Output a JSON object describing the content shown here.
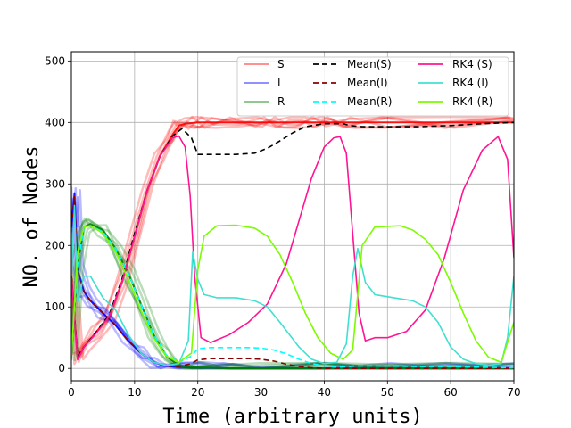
{
  "chart_data": {
    "type": "line",
    "xlabel": "Time (arbitrary units)",
    "ylabel": "NO. of Nodes",
    "xlim": [
      0,
      70
    ],
    "ylim": [
      -20,
      515
    ],
    "grid": true,
    "legend_position": "top-right",
    "x_ticks": [
      0,
      10,
      20,
      30,
      40,
      50,
      60,
      70
    ],
    "y_ticks": [
      0,
      100,
      200,
      300,
      400,
      500
    ],
    "x_tick_labels": [
      "0",
      "10",
      "20",
      "30",
      "40",
      "50",
      "60",
      "70"
    ],
    "y_tick_labels": [
      "0",
      "100",
      "200",
      "300",
      "400",
      "500"
    ],
    "series": [
      {
        "name": "S",
        "color": "#ff0000",
        "style": "realizations",
        "opacity": 0.45,
        "x": [
          0,
          1,
          2,
          4,
          6,
          8,
          10,
          12,
          14,
          16,
          17,
          18,
          20,
          22,
          26,
          30,
          32,
          34,
          36,
          38,
          40,
          42,
          44,
          50,
          60,
          70
        ],
        "values": [
          150,
          15,
          35,
          60,
          85,
          140,
          215,
          290,
          345,
          380,
          395,
          398,
          400,
          400,
          400,
          400,
          400,
          400,
          400,
          400,
          400,
          400,
          400,
          400,
          400,
          400
        ]
      },
      {
        "name": "I",
        "color": "#0000ff",
        "style": "realizations",
        "opacity": 0.45,
        "x": [
          0,
          0.5,
          1,
          2,
          3,
          5,
          7,
          9,
          11,
          13,
          15,
          17,
          20,
          25,
          30,
          40,
          50,
          60,
          70
        ],
        "values": [
          230,
          285,
          160,
          125,
          110,
          90,
          70,
          45,
          25,
          10,
          4,
          2,
          1,
          0,
          0,
          0,
          0,
          0,
          0
        ]
      },
      {
        "name": "R",
        "color": "#008000",
        "style": "realizations",
        "opacity": 0.45,
        "x": [
          0,
          1,
          2,
          3,
          5,
          7,
          9,
          11,
          13,
          15,
          17,
          20,
          25,
          30,
          40,
          50,
          60,
          70
        ],
        "values": [
          20,
          170,
          230,
          235,
          225,
          195,
          155,
          105,
          55,
          20,
          5,
          2,
          0,
          0,
          0,
          0,
          0,
          0
        ]
      },
      {
        "name": "Mean(S)",
        "color": "#000000",
        "dash": "6,4",
        "x": [
          0,
          1,
          2,
          4,
          6,
          8,
          10,
          12,
          14,
          16,
          17.5,
          19,
          20,
          22,
          26,
          29,
          31,
          33,
          35,
          37,
          40,
          43,
          44,
          46,
          50,
          55,
          60,
          65,
          70
        ],
        "values": [
          150,
          20,
          35,
          60,
          88,
          145,
          220,
          290,
          345,
          378,
          390,
          375,
          348,
          348,
          348,
          350,
          358,
          370,
          383,
          393,
          398,
          398,
          395,
          393,
          393,
          393,
          395,
          398,
          400
        ]
      },
      {
        "name": "Mean(I)",
        "color": "#8b0000",
        "dash": "6,4",
        "x": [
          0,
          0.5,
          1,
          2,
          3,
          5,
          7,
          9,
          11,
          13,
          15,
          17,
          19,
          20,
          22,
          25,
          28,
          30,
          32,
          34,
          36,
          38,
          40,
          45,
          50,
          60,
          70
        ],
        "values": [
          230,
          280,
          160,
          125,
          110,
          90,
          70,
          45,
          25,
          10,
          4,
          3,
          8,
          14,
          16,
          16,
          16,
          15,
          12,
          7,
          3,
          1,
          0,
          0,
          0,
          0,
          0
        ]
      },
      {
        "name": "Mean(R)",
        "color": "#00ffff",
        "dash": "6,4",
        "x": [
          0,
          1,
          2,
          3,
          5,
          7,
          9,
          11,
          13,
          15,
          17,
          19,
          20,
          22,
          25,
          28,
          30,
          32,
          34,
          36,
          38,
          40,
          42,
          45,
          50,
          55,
          60,
          65,
          70
        ],
        "values": [
          20,
          170,
          230,
          232,
          222,
          195,
          155,
          105,
          55,
          22,
          10,
          20,
          32,
          34,
          34,
          34,
          33,
          30,
          24,
          15,
          8,
          4,
          2,
          4,
          4,
          3,
          3,
          2,
          1
        ]
      },
      {
        "name": "RK4 (S)",
        "color": "#ff1493",
        "dash": "",
        "x": [
          0,
          1,
          2,
          4,
          6,
          8,
          10,
          12,
          14,
          16,
          17,
          18,
          18.8,
          19.5,
          20.5,
          22,
          25,
          28,
          31,
          34,
          36,
          38,
          40,
          41.5,
          42.5,
          43.5,
          44.5,
          45.5,
          46.5,
          48,
          50,
          53,
          56,
          59,
          62,
          65,
          67.5,
          69,
          70
        ],
        "values": [
          150,
          15,
          35,
          58,
          85,
          140,
          215,
          290,
          345,
          375,
          378,
          360,
          280,
          150,
          50,
          42,
          55,
          75,
          105,
          170,
          240,
          310,
          360,
          375,
          377,
          350,
          220,
          90,
          45,
          50,
          50,
          60,
          95,
          180,
          290,
          355,
          377,
          340,
          180
        ]
      },
      {
        "name": "RK4 (I)",
        "color": "#40e0d0",
        "dash": "",
        "x": [
          0,
          0.5,
          1,
          2,
          3,
          5,
          7,
          9,
          11,
          13,
          15,
          17,
          18.5,
          19.2,
          20,
          21,
          23,
          26,
          29,
          31,
          33,
          36,
          38,
          40,
          42,
          43.5,
          44.5,
          45.3,
          46.5,
          48,
          51,
          54,
          56,
          58,
          60,
          62,
          64,
          66,
          68,
          69,
          70
        ],
        "values": [
          150,
          265,
          110,
          150,
          150,
          115,
          95,
          55,
          25,
          10,
          5,
          8,
          45,
          190,
          145,
          120,
          115,
          115,
          110,
          100,
          75,
          35,
          15,
          8,
          10,
          40,
          150,
          195,
          140,
          120,
          115,
          110,
          100,
          75,
          35,
          15,
          8,
          5,
          8,
          50,
          150
        ]
      },
      {
        "name": "RK4 (R)",
        "color": "#7cfc00",
        "dash": "",
        "x": [
          0,
          1,
          2,
          3,
          5,
          7,
          9,
          11,
          13,
          15,
          17,
          19,
          20,
          21,
          23,
          26,
          29,
          31,
          33,
          35,
          37,
          39,
          41,
          43,
          44.5,
          46,
          48,
          52,
          54,
          56,
          58,
          60,
          62,
          64,
          66,
          68,
          70
        ],
        "values": [
          20,
          190,
          230,
          232,
          220,
          190,
          145,
          95,
          50,
          20,
          10,
          25,
          160,
          215,
          232,
          233,
          228,
          215,
          185,
          140,
          90,
          50,
          25,
          15,
          30,
          200,
          230,
          232,
          225,
          210,
          185,
          140,
          90,
          45,
          18,
          10,
          75
        ]
      }
    ]
  }
}
